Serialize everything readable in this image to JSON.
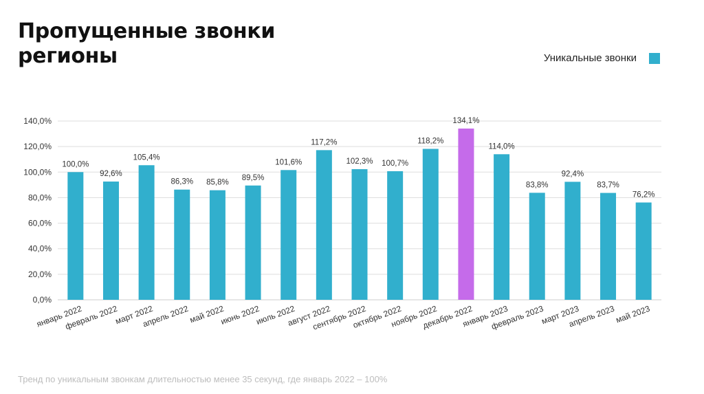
{
  "title_line1": "Пропущенные звонки",
  "title_line2": "регионы",
  "legend": {
    "label": "Уникальные звонки"
  },
  "footnote": "Тренд по  уникальным звонкам длительностью менее 35 секунд, где январь 2022 – 100%",
  "colors": {
    "bar": "#31afcd",
    "highlight": "#c56bea",
    "grid": "#dddddd",
    "text": "#333333"
  },
  "chart_data": {
    "type": "bar",
    "categories": [
      "январь 2022",
      "февраль 2022",
      "март 2022",
      "апрель 2022",
      "май 2022",
      "июнь 2022",
      "июль 2022",
      "август 2022",
      "сентябрь 2022",
      "октябрь 2022",
      "ноябрь 2022",
      "декабрь 2022",
      "январь 2023",
      "февраль 2023",
      "март 2023",
      "апрель 2023",
      "май 2023"
    ],
    "series": [
      {
        "name": "Уникальные звонки",
        "values": [
          100.0,
          92.6,
          105.4,
          86.3,
          85.8,
          89.5,
          101.6,
          117.2,
          102.3,
          100.7,
          118.2,
          134.1,
          114.0,
          83.8,
          92.4,
          83.7,
          76.2
        ],
        "labels": [
          "100,0%",
          "92,6%",
          "105,4%",
          "86,3%",
          "85,8%",
          "89,5%",
          "101,6%",
          "117,2%",
          "102,3%",
          "100,7%",
          "118,2%",
          "134,1%",
          "114,0%",
          "83,8%",
          "92,4%",
          "83,7%",
          "76,2%"
        ]
      }
    ],
    "highlight_category": "декабрь 2022",
    "yticks": [
      0,
      20,
      40,
      60,
      80,
      100,
      120,
      140
    ],
    "ytick_labels": [
      "0,0%",
      "20,0%",
      "40,0%",
      "60,0%",
      "80,0%",
      "100,0%",
      "120,0%",
      "140,0%"
    ],
    "ylim": [
      0,
      140
    ],
    "grid": true,
    "legend_position": "top-right"
  }
}
